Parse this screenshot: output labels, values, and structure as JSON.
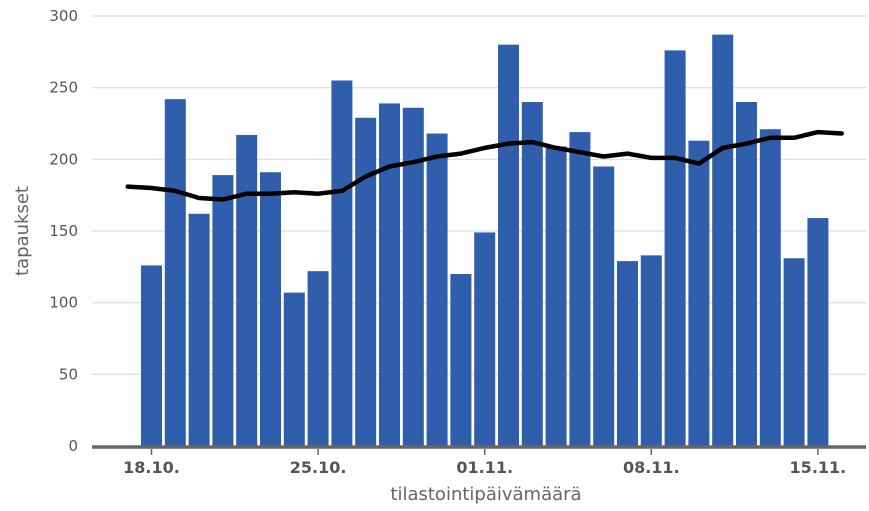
{
  "chart_data": {
    "type": "bar",
    "xlabel": "tilastointipäivämäärä",
    "ylabel": "tapaukset",
    "ylim": [
      0,
      300
    ],
    "yticks": [
      0,
      50,
      100,
      150,
      200,
      250,
      300
    ],
    "grid": true,
    "x_tick_labels": [
      {
        "date": "2020-10-18",
        "label": "18.10."
      },
      {
        "date": "2020-10-25",
        "label": "25.10."
      },
      {
        "date": "2020-11-01",
        "label": "01.11."
      },
      {
        "date": "2020-11-08",
        "label": "08.11."
      },
      {
        "date": "2020-11-15",
        "label": "15.11."
      }
    ],
    "dates": [
      "2020-10-18",
      "2020-10-19",
      "2020-10-20",
      "2020-10-21",
      "2020-10-22",
      "2020-10-23",
      "2020-10-24",
      "2020-10-25",
      "2020-10-26",
      "2020-10-27",
      "2020-10-28",
      "2020-10-29",
      "2020-10-30",
      "2020-10-31",
      "2020-11-01",
      "2020-11-02",
      "2020-11-03",
      "2020-11-04",
      "2020-11-05",
      "2020-11-06",
      "2020-11-07",
      "2020-11-08",
      "2020-11-09",
      "2020-11-10",
      "2020-11-11",
      "2020-11-12",
      "2020-11-13",
      "2020-11-14",
      "2020-11-15"
    ],
    "series": [
      {
        "type": "bar",
        "color": "#2f5fac",
        "values": [
          126,
          242,
          162,
          189,
          217,
          191,
          107,
          122,
          255,
          229,
          239,
          236,
          218,
          120,
          149,
          280,
          240,
          209,
          219,
          195,
          129,
          133,
          276,
          213,
          287,
          240,
          221,
          131,
          159
        ]
      },
      {
        "type": "line",
        "color": "#000000",
        "x": [
          "2020-10-17",
          "2020-10-18",
          "2020-10-19",
          "2020-10-20",
          "2020-10-21",
          "2020-10-22",
          "2020-10-23",
          "2020-10-24",
          "2020-10-25",
          "2020-10-26",
          "2020-10-27",
          "2020-10-28",
          "2020-10-29",
          "2020-10-30",
          "2020-10-31",
          "2020-11-01",
          "2020-11-02",
          "2020-11-03",
          "2020-11-04",
          "2020-11-05",
          "2020-11-06",
          "2020-11-07",
          "2020-11-08",
          "2020-11-09",
          "2020-11-10",
          "2020-11-11",
          "2020-11-12",
          "2020-11-13",
          "2020-11-14",
          "2020-11-15",
          "2020-11-16"
        ],
        "values": [
          181,
          180,
          178,
          173,
          172,
          176,
          176,
          177,
          176,
          178,
          188,
          195,
          198,
          202,
          204,
          208,
          211,
          212,
          208,
          205,
          202,
          204,
          201,
          201,
          197,
          208,
          211,
          215,
          215,
          219,
          218
        ]
      }
    ]
  }
}
